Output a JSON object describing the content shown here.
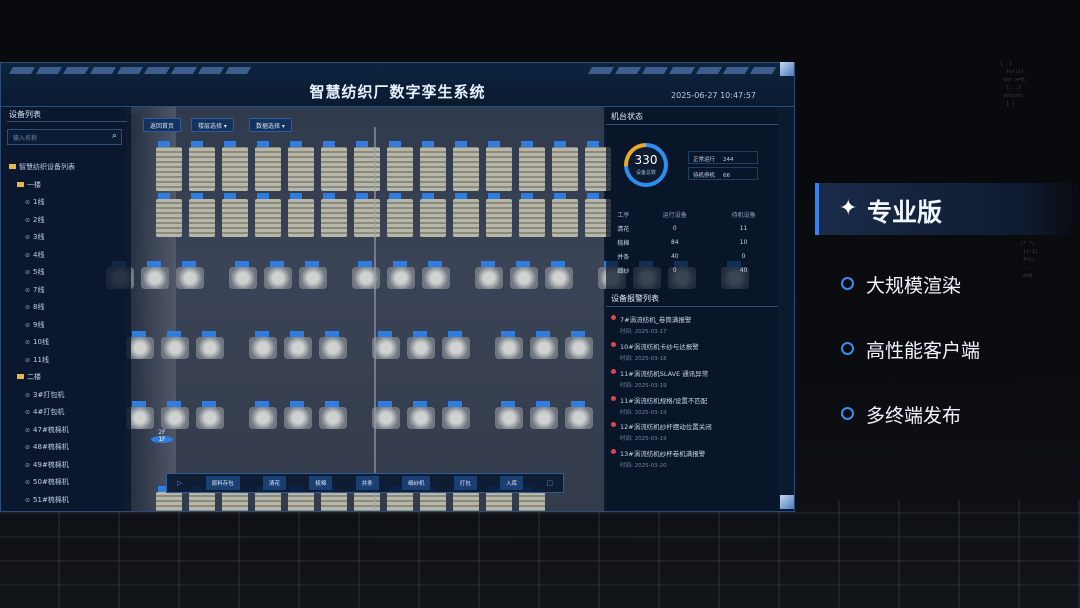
{
  "app": {
    "title": "智慧纺织厂数字孪生系统",
    "datetime": "2025-06-27 10:47:57"
  },
  "sidebar": {
    "title": "设备列表",
    "search_placeholder": "输入名称",
    "root": "智慧纺织设备列表",
    "groups": [
      {
        "label": "一楼",
        "items": [
          "1线",
          "2线",
          "3线",
          "4线",
          "5线",
          "7线",
          "8线",
          "9线",
          "10线",
          "11线"
        ]
      },
      {
        "label": "二楼",
        "items": [
          "3#打包机",
          "4#打包机",
          "47#梳棉机",
          "48#梳棉机",
          "49#梳棉机",
          "50#梳棉机",
          "51#梳棉机"
        ]
      }
    ]
  },
  "toolbar": {
    "home": "返回首页",
    "floor": "楼层选择",
    "data": "数据选择"
  },
  "status_panel": {
    "title": "机台状态",
    "total": "330",
    "total_label": "设备总数",
    "running_label": "正常运行",
    "running": "244",
    "standby_label": "待机停机",
    "standby": "66",
    "running_fraction": 0.74,
    "headers": [
      "工序",
      "运行设备",
      "待机设备"
    ],
    "rows": [
      [
        "清花",
        "0",
        "11"
      ],
      [
        "梳棉",
        "84",
        "10"
      ],
      [
        "并条",
        "40",
        "0"
      ],
      [
        "细纱",
        "0",
        "40"
      ]
    ]
  },
  "alarm_panel": {
    "title": "设备报警列表",
    "items": [
      {
        "text": "7#涡流纺机_卷筒满报警",
        "time": "时间: 2025-03-17"
      },
      {
        "text": "10#涡流纺机卡纱与达报警",
        "time": "时间: 2025-03-18"
      },
      {
        "text": "11#涡流纺机SLAVE 通讯异常",
        "time": "时间: 2025-03-19"
      },
      {
        "text": "11#涡流纺机规格/设置不匹配",
        "time": "时间: 2025-03-19"
      },
      {
        "text": "12#涡流纺机纱杆摆动位置关闭",
        "time": "时间: 2025-03-19"
      },
      {
        "text": "13#涡流纺机纱杯卷机满报警",
        "time": "时间: 2025-03-20"
      }
    ]
  },
  "floor_switch": {
    "upper": "2F",
    "current": "1F"
  },
  "process": [
    "原料存包",
    "清花",
    "梳棉",
    "并条",
    "细纱机",
    "打包",
    "入库"
  ],
  "promo": {
    "badge": "专业版",
    "features": [
      "大规模渲染",
      "高性能客户端",
      "多终端发布"
    ]
  },
  "colors": {
    "accent": "#3d8cf0",
    "warning": "#e8a82a",
    "alarm": "#e64444"
  }
}
